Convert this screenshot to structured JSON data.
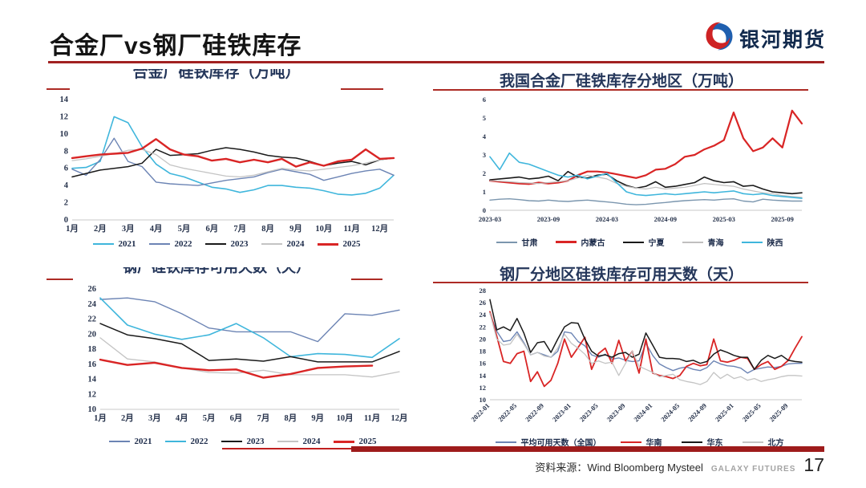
{
  "header": {
    "title": "合金厂vs钢厂硅铁库存"
  },
  "logo": {
    "text": "银河期货"
  },
  "footer": {
    "source_label": "资料来源：Wind Bloomberg Mysteel",
    "brand": "GALAXY FUTURES",
    "page": "17"
  },
  "colors": {
    "header_rule_red": "#A12121",
    "panel_rule_red": "#AD2B25",
    "bottom_bar_dark_red": "#9E1B1B",
    "title_navy": "#24365A",
    "axis_navy": "#26324B",
    "series_cyan": "#3FB6DC",
    "series_slate_blue": "#6C84B4",
    "series_black": "#1A1A1A",
    "series_gray": "#C4C4C4",
    "series_red": "#D92525"
  },
  "chart_data": [
    {
      "type": "line",
      "title": "合金厂硅铁库存（万吨）",
      "ylim": [
        0,
        14
      ],
      "ystep": 2,
      "grid": false,
      "legend_position": "bottom",
      "n": 24,
      "x_labels": [
        "1月",
        "2月",
        "3月",
        "4月",
        "5月",
        "6月",
        "7月",
        "8月",
        "9月",
        "10月",
        "11月",
        "12月"
      ],
      "xtick_idx": [
        0,
        2,
        4,
        6,
        8,
        10,
        12,
        14,
        16,
        18,
        20,
        22
      ],
      "series": [
        {
          "name": "2021",
          "color": "#3FB6DC",
          "width": 1.6,
          "values": [
            6.0,
            6.1,
            6.8,
            12.0,
            11.3,
            8.5,
            6.5,
            5.4,
            5.0,
            4.4,
            3.8,
            3.6,
            3.2,
            3.5,
            4.0,
            4.0,
            3.8,
            3.7,
            3.4,
            3.0,
            2.9,
            3.1,
            3.7,
            5.2
          ]
        },
        {
          "name": "2022",
          "color": "#6C84B4",
          "width": 1.4,
          "values": [
            5.9,
            5.2,
            7.0,
            9.5,
            6.8,
            6.2,
            4.4,
            4.2,
            4.1,
            4.0,
            4.3,
            4.6,
            4.8,
            5.0,
            5.5,
            5.9,
            5.6,
            5.3,
            4.6,
            5.0,
            5.4,
            5.7,
            5.9,
            5.2
          ]
        },
        {
          "name": "2023",
          "color": "#1A1A1A",
          "width": 1.5,
          "values": [
            5.0,
            5.4,
            5.8,
            6.0,
            6.2,
            6.6,
            8.2,
            7.5,
            7.6,
            7.7,
            8.1,
            8.4,
            8.2,
            7.9,
            7.5,
            7.3,
            7.2,
            6.8,
            6.3,
            6.6,
            6.8,
            6.4,
            7.0,
            7.2
          ]
        },
        {
          "name": "2024",
          "color": "#C4C4C4",
          "width": 1.3,
          "values": [
            6.9,
            7.1,
            7.4,
            7.7,
            8.1,
            8.2,
            7.6,
            6.4,
            6.0,
            5.7,
            5.4,
            5.1,
            5.0,
            5.2,
            5.6,
            6.0,
            5.8,
            5.7,
            5.9,
            6.1,
            6.3,
            6.6,
            7.0,
            7.2
          ]
        },
        {
          "name": "2025",
          "color": "#D92525",
          "width": 2.4,
          "values": [
            7.2,
            7.4,
            7.6,
            7.7,
            7.8,
            8.3,
            9.4,
            8.2,
            7.6,
            7.4,
            6.9,
            7.1,
            6.7,
            7.0,
            6.7,
            7.1,
            6.2,
            6.7,
            6.3,
            6.8,
            7.0,
            8.2,
            7.1,
            7.2
          ]
        }
      ]
    },
    {
      "type": "line",
      "title": "我国合金厂硅铁库存分地区（万吨）",
      "ylim": [
        0,
        6
      ],
      "ystep": 1,
      "grid": false,
      "legend_position": "bottom",
      "n": 33,
      "x_labels": [
        "2023-03",
        "2023-09",
        "2024-03",
        "2024-09",
        "2025-03",
        "2025-09"
      ],
      "xtick_idx": [
        0,
        6,
        12,
        18,
        24,
        30
      ],
      "series": [
        {
          "name": "甘肃",
          "color": "#7B96AE",
          "width": 1.4,
          "values": [
            0.55,
            0.6,
            0.62,
            0.58,
            0.52,
            0.5,
            0.55,
            0.5,
            0.48,
            0.52,
            0.55,
            0.5,
            0.45,
            0.4,
            0.33,
            0.3,
            0.32,
            0.38,
            0.42,
            0.48,
            0.52,
            0.55,
            0.58,
            0.55,
            0.6,
            0.62,
            0.5,
            0.45,
            0.6,
            0.55,
            0.52,
            0.5,
            0.5
          ]
        },
        {
          "name": "内蒙古",
          "color": "#D92525",
          "width": 2.2,
          "values": [
            1.6,
            1.55,
            1.5,
            1.45,
            1.42,
            1.5,
            1.45,
            1.5,
            1.6,
            1.9,
            2.1,
            2.1,
            2.05,
            1.95,
            1.85,
            1.75,
            1.9,
            2.2,
            2.25,
            2.5,
            2.9,
            3.0,
            3.3,
            3.5,
            3.8,
            5.3,
            3.9,
            3.2,
            3.4,
            3.9,
            3.4,
            5.4,
            4.7
          ]
        },
        {
          "name": "宁夏",
          "color": "#1A1A1A",
          "width": 1.6,
          "values": [
            1.65,
            1.7,
            1.75,
            1.8,
            1.7,
            1.75,
            1.85,
            1.6,
            2.1,
            1.8,
            1.75,
            1.9,
            1.95,
            1.6,
            1.35,
            1.2,
            1.3,
            1.55,
            1.25,
            1.3,
            1.4,
            1.5,
            1.8,
            1.6,
            1.5,
            1.55,
            1.3,
            1.35,
            1.15,
            1.0,
            0.95,
            0.9,
            0.95
          ]
        },
        {
          "name": "青海",
          "color": "#C0BFBF",
          "width": 1.2,
          "values": [
            1.6,
            1.58,
            1.55,
            1.5,
            1.48,
            1.45,
            1.5,
            1.55,
            1.6,
            1.75,
            1.9,
            1.8,
            1.7,
            1.45,
            1.3,
            1.2,
            1.15,
            1.25,
            1.15,
            1.2,
            1.25,
            1.35,
            1.45,
            1.4,
            1.35,
            1.3,
            1.15,
            1.05,
            0.95,
            0.9,
            0.8,
            0.75,
            0.7
          ]
        },
        {
          "name": "陕西",
          "color": "#3FB6DC",
          "width": 1.6,
          "values": [
            2.9,
            2.2,
            3.1,
            2.6,
            2.5,
            2.3,
            2.1,
            1.9,
            1.8,
            1.9,
            1.7,
            1.85,
            2.0,
            1.5,
            1.0,
            0.85,
            0.8,
            0.85,
            0.9,
            0.85,
            0.9,
            0.95,
            1.0,
            0.95,
            1.0,
            1.05,
            0.9,
            0.85,
            0.9,
            0.8,
            0.75,
            0.7,
            0.65
          ]
        }
      ]
    },
    {
      "type": "line",
      "title": "钢厂硅铁库存可用天数（天）",
      "ylim": [
        10,
        26
      ],
      "ystep": 2,
      "grid": false,
      "legend_position": "bottom",
      "n": 12,
      "x_labels": [
        "1月",
        "2月",
        "3月",
        "4月",
        "5月",
        "6月",
        "7月",
        "8月",
        "9月",
        "10月",
        "11月",
        "12月"
      ],
      "xtick_idx": [
        0,
        1,
        2,
        3,
        4,
        5,
        6,
        7,
        8,
        9,
        10,
        11
      ],
      "series": [
        {
          "name": "2021",
          "color": "#6C84B4",
          "width": 1.4,
          "values": [
            24.6,
            24.8,
            24.3,
            22.7,
            20.8,
            20.3,
            20.3,
            20.3,
            19.0,
            22.7,
            22.5,
            23.2
          ]
        },
        {
          "name": "2022",
          "color": "#3FB6DC",
          "width": 1.6,
          "values": [
            24.8,
            21.2,
            20.0,
            19.3,
            19.9,
            21.4,
            19.5,
            17.0,
            17.4,
            17.3,
            16.9,
            19.4
          ]
        },
        {
          "name": "2023",
          "color": "#1A1A1A",
          "width": 1.5,
          "values": [
            21.4,
            19.9,
            19.4,
            18.7,
            16.5,
            16.7,
            16.4,
            17.0,
            16.3,
            16.3,
            16.3,
            17.7
          ]
        },
        {
          "name": "2024",
          "color": "#C4C4C4",
          "width": 1.3,
          "values": [
            19.5,
            16.7,
            16.3,
            15.5,
            14.9,
            14.8,
            15.2,
            14.6,
            14.6,
            14.6,
            14.3,
            15.0
          ]
        },
        {
          "name": "2025",
          "color": "#D92525",
          "width": 2.4,
          "values": [
            16.6,
            15.9,
            16.2,
            15.5,
            15.2,
            15.3,
            14.2,
            14.7,
            15.5,
            15.7,
            15.8
          ]
        }
      ]
    },
    {
      "type": "line",
      "title": "钢厂分地区硅铁库存可用天数（天）",
      "ylim": [
        10,
        28
      ],
      "ystep": 2,
      "grid": false,
      "legend_position": "bottom",
      "rotate_x": true,
      "n": 47,
      "x_labels": [
        "2022-01",
        "2022-05",
        "2022-09",
        "2023-01",
        "2023-05",
        "2023-09",
        "2024-01",
        "2024-05",
        "2024-09",
        "2025-01",
        "2025-05",
        "2025-09"
      ],
      "xtick_idx": [
        0,
        4,
        8,
        12,
        16,
        20,
        24,
        28,
        32,
        36,
        40,
        44
      ],
      "series": [
        {
          "name": "平均可用天数（全国）",
          "color": "#6C84B4",
          "width": 1.4,
          "values": [
            24.2,
            21.3,
            19.6,
            19.8,
            21.2,
            19.4,
            17.4,
            17.8,
            17.4,
            17.0,
            18.0,
            21.2,
            21.0,
            19.6,
            18.9,
            17.4,
            17.0,
            17.5,
            16.7,
            16.9,
            16.5,
            16.3,
            16.4,
            19.3,
            17.3,
            15.9,
            15.3,
            14.8,
            15.2,
            15.4,
            15.0,
            14.8,
            15.3,
            16.4,
            15.9,
            15.6,
            15.5,
            15.2,
            14.4,
            15.0,
            15.2,
            15.4,
            15.3,
            15.5,
            15.9,
            16.0,
            16.0
          ]
        },
        {
          "name": "华南",
          "color": "#D92525",
          "width": 1.8,
          "values": [
            24.5,
            20.5,
            16.3,
            16.0,
            17.6,
            18.0,
            13.0,
            14.6,
            12.2,
            13.2,
            16.0,
            20.0,
            17.0,
            18.6,
            20.3,
            15.0,
            17.6,
            18.5,
            16.0,
            19.8,
            16.4,
            18.0,
            14.4,
            20.0,
            14.4,
            14.0,
            13.8,
            13.5,
            14.0,
            15.5,
            16.0,
            15.6,
            15.8,
            20.0,
            16.4,
            16.2,
            16.5,
            17.0,
            16.8,
            15.0,
            15.8,
            16.3,
            15.0,
            15.5,
            16.5,
            18.5,
            20.4
          ]
        },
        {
          "name": "华东",
          "color": "#1A1A1A",
          "width": 1.5,
          "values": [
            26.5,
            21.5,
            22.0,
            21.4,
            23.4,
            21.0,
            17.8,
            19.4,
            19.6,
            17.8,
            20.0,
            22.0,
            22.7,
            22.6,
            20.0,
            18.0,
            17.2,
            17.4,
            17.0,
            17.6,
            17.8,
            17.0,
            17.5,
            21.0,
            19.0,
            17.0,
            16.8,
            16.8,
            16.7,
            16.3,
            16.5,
            16.0,
            16.3,
            17.5,
            18.2,
            17.8,
            17.3,
            17.0,
            17.0,
            15.0,
            16.5,
            17.3,
            16.8,
            17.3,
            16.5,
            16.3,
            16.2
          ]
        },
        {
          "name": "北方",
          "color": "#C4C4C4",
          "width": 1.3,
          "values": [
            24.3,
            20.0,
            19.0,
            19.2,
            20.8,
            19.2,
            17.4,
            17.8,
            17.2,
            17.0,
            18.5,
            20.8,
            19.3,
            18.5,
            17.5,
            16.0,
            16.4,
            16.0,
            16.2,
            14.0,
            16.0,
            18.0,
            15.5,
            15.0,
            14.5,
            13.8,
            14.0,
            14.2,
            13.3,
            13.0,
            12.8,
            12.5,
            13.0,
            14.5,
            13.5,
            14.2,
            13.5,
            13.8,
            13.2,
            13.5,
            13.0,
            13.3,
            13.5,
            13.8,
            14.0,
            14.0,
            13.9
          ]
        }
      ]
    }
  ]
}
